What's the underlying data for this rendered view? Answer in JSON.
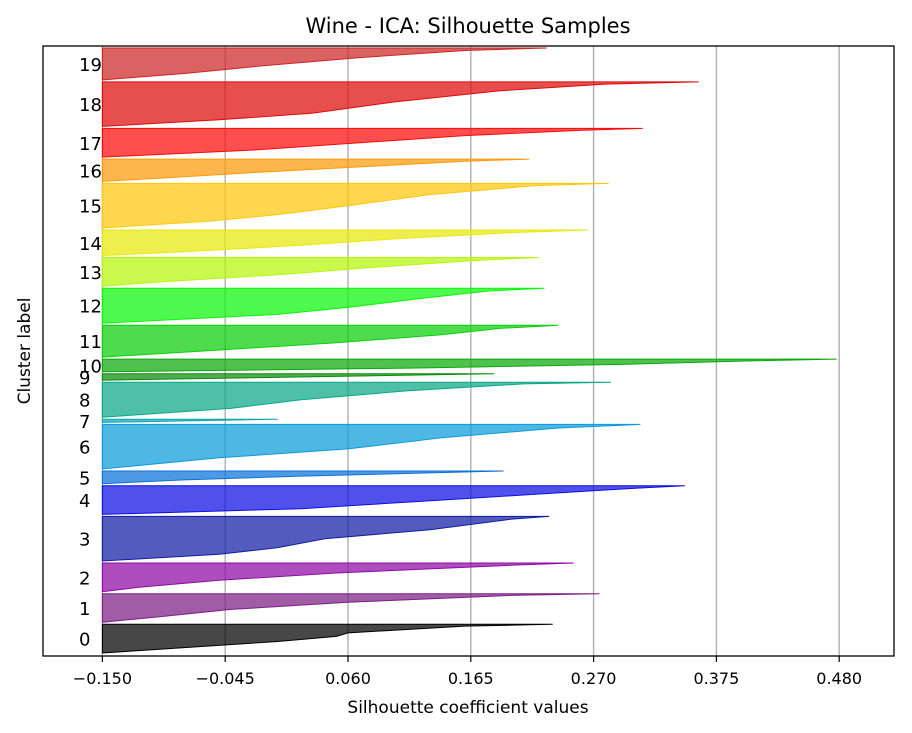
{
  "chart_data": {
    "type": "silhouette",
    "title": "Wine - ICA: Silhouette Samples",
    "xlabel": "Silhouette coefficient values",
    "ylabel": "Cluster label",
    "xlim": [
      -0.2,
      0.5
    ],
    "xticks": [
      -0.15,
      -0.045,
      0.06,
      0.165,
      0.27,
      0.375,
      0.48
    ],
    "xtick_labels": [
      "−0.150",
      "−0.045",
      "0.060",
      "0.165",
      "0.270",
      "0.375",
      "0.480"
    ],
    "grid_x": true,
    "clusters": [
      {
        "label": "0",
        "color": "#000000",
        "size": 9,
        "max": 0.235,
        "min": -0.15,
        "shape": [
          [
            0,
            0.235
          ],
          [
            0.06,
            0.16
          ],
          [
            0.3,
            0.06
          ],
          [
            0.42,
            0.05
          ],
          [
            0.6,
            0.0
          ],
          [
            1,
            -0.15
          ]
        ]
      },
      {
        "label": "1",
        "color": "#7b1e84",
        "size": 9,
        "max": 0.275,
        "min": -0.15,
        "shape": [
          [
            0,
            0.275
          ],
          [
            0.06,
            0.2
          ],
          [
            0.3,
            0.06
          ],
          [
            0.55,
            -0.04
          ],
          [
            0.8,
            -0.1
          ],
          [
            1,
            -0.15
          ]
        ]
      },
      {
        "label": "2",
        "color": "#8f0aa5",
        "size": 9,
        "max": 0.253,
        "min": -0.15,
        "shape": [
          [
            0,
            0.253
          ],
          [
            0.06,
            0.21
          ],
          [
            0.35,
            0.05
          ],
          [
            0.6,
            -0.05
          ],
          [
            0.85,
            -0.12
          ],
          [
            1,
            -0.15
          ]
        ]
      },
      {
        "label": "3",
        "color": "#101da3",
        "size": 14,
        "max": 0.232,
        "min": -0.15,
        "shape": [
          [
            0,
            0.232
          ],
          [
            0.06,
            0.2
          ],
          [
            0.3,
            0.13
          ],
          [
            0.5,
            0.04
          ],
          [
            0.7,
            0.0
          ],
          [
            0.85,
            -0.05
          ],
          [
            1,
            -0.15
          ]
        ]
      },
      {
        "label": "4",
        "color": "#0d0de2",
        "size": 9,
        "max": 0.348,
        "min": -0.15,
        "shape": [
          [
            0,
            0.348
          ],
          [
            0.1,
            0.3
          ],
          [
            0.3,
            0.22
          ],
          [
            0.55,
            0.12
          ],
          [
            0.8,
            0.02
          ],
          [
            1,
            -0.15
          ]
        ]
      },
      {
        "label": "5",
        "color": "#0a72d8",
        "size": 4,
        "max": 0.193,
        "min": -0.15,
        "shape": [
          [
            0,
            0.193
          ],
          [
            0.1,
            0.15
          ],
          [
            0.4,
            0.02
          ],
          [
            0.7,
            -0.08
          ],
          [
            1,
            -0.15
          ]
        ]
      },
      {
        "label": "6",
        "color": "#0a9bda",
        "size": 14,
        "max": 0.31,
        "min": -0.15,
        "shape": [
          [
            0,
            0.31
          ],
          [
            0.08,
            0.24
          ],
          [
            0.3,
            0.14
          ],
          [
            0.55,
            0.06
          ],
          [
            0.75,
            -0.05
          ],
          [
            1,
            -0.15
          ]
        ]
      },
      {
        "label": "7",
        "color": "#0aa5b2",
        "size": 1,
        "max": 0.0,
        "min": -0.15,
        "shape": [
          [
            0,
            0.0
          ],
          [
            1,
            -0.15
          ]
        ]
      },
      {
        "label": "8",
        "color": "#0aa887",
        "size": 11,
        "max": 0.285,
        "min": -0.15,
        "shape": [
          [
            0,
            0.285
          ],
          [
            0.05,
            0.21
          ],
          [
            0.25,
            0.11
          ],
          [
            0.5,
            0.02
          ],
          [
            0.75,
            -0.04
          ],
          [
            1,
            -0.15
          ]
        ]
      },
      {
        "label": "9",
        "color": "#0a8c0a",
        "size": 2,
        "max": 0.185,
        "min": -0.15,
        "shape": [
          [
            0,
            0.185
          ],
          [
            1,
            -0.15
          ]
        ]
      },
      {
        "label": "10",
        "color": "#0aa90a",
        "size": 4,
        "max": 0.478,
        "min": -0.15,
        "shape": [
          [
            0,
            0.478
          ],
          [
            0.15,
            0.4
          ],
          [
            0.4,
            0.3
          ],
          [
            0.7,
            0.12
          ],
          [
            1,
            -0.15
          ]
        ]
      },
      {
        "label": "11",
        "color": "#0acf0a",
        "size": 10,
        "max": 0.24,
        "min": -0.15,
        "shape": [
          [
            0,
            0.24
          ],
          [
            0.1,
            0.19
          ],
          [
            0.3,
            0.14
          ],
          [
            0.55,
            0.05
          ],
          [
            0.8,
            -0.06
          ],
          [
            1,
            -0.15
          ]
        ]
      },
      {
        "label": "12",
        "color": "#0af50a",
        "size": 11,
        "max": 0.228,
        "min": -0.15,
        "shape": [
          [
            0,
            0.228
          ],
          [
            0.08,
            0.18
          ],
          [
            0.3,
            0.12
          ],
          [
            0.55,
            0.06
          ],
          [
            0.75,
            0.0
          ],
          [
            1,
            -0.15
          ]
        ]
      },
      {
        "label": "13",
        "color": "#b7f50a",
        "size": 9,
        "max": 0.223,
        "min": -0.15,
        "shape": [
          [
            0,
            0.223
          ],
          [
            0.1,
            0.17
          ],
          [
            0.35,
            0.08
          ],
          [
            0.6,
            0.0
          ],
          [
            0.85,
            -0.1
          ],
          [
            1,
            -0.15
          ]
        ]
      },
      {
        "label": "14",
        "color": "#e8e80a",
        "size": 8,
        "max": 0.265,
        "min": -0.15,
        "shape": [
          [
            0,
            0.265
          ],
          [
            0.1,
            0.2
          ],
          [
            0.35,
            0.1
          ],
          [
            0.6,
            0.02
          ],
          [
            0.85,
            -0.08
          ],
          [
            1,
            -0.15
          ]
        ]
      },
      {
        "label": "15",
        "color": "#fdc70a",
        "size": 14,
        "max": 0.283,
        "min": -0.15,
        "shape": [
          [
            0,
            0.283
          ],
          [
            0.05,
            0.22
          ],
          [
            0.25,
            0.13
          ],
          [
            0.5,
            0.06
          ],
          [
            0.7,
            0.0
          ],
          [
            0.85,
            -0.06
          ],
          [
            1,
            -0.15
          ]
        ]
      },
      {
        "label": "16",
        "color": "#fb9a0a",
        "size": 7,
        "max": 0.215,
        "min": -0.15,
        "shape": [
          [
            0,
            0.215
          ],
          [
            0.1,
            0.16
          ],
          [
            0.35,
            0.07
          ],
          [
            0.6,
            -0.02
          ],
          [
            0.85,
            -0.1
          ],
          [
            1,
            -0.15
          ]
        ]
      },
      {
        "label": "17",
        "color": "#fe0a0a",
        "size": 9,
        "max": 0.312,
        "min": -0.15,
        "shape": [
          [
            0,
            0.312
          ],
          [
            0.06,
            0.26
          ],
          [
            0.25,
            0.16
          ],
          [
            0.5,
            0.07
          ],
          [
            0.75,
            -0.02
          ],
          [
            1,
            -0.15
          ]
        ]
      },
      {
        "label": "18",
        "color": "#de0a0a",
        "size": 14,
        "max": 0.36,
        "min": -0.15,
        "shape": [
          [
            0,
            0.36
          ],
          [
            0.05,
            0.28
          ],
          [
            0.2,
            0.19
          ],
          [
            0.45,
            0.1
          ],
          [
            0.7,
            0.03
          ],
          [
            0.85,
            -0.05
          ],
          [
            1,
            -0.15
          ]
        ]
      },
      {
        "label": "19",
        "color": "#cc2626",
        "size": 10,
        "max": 0.23,
        "min": -0.15,
        "shape": [
          [
            0,
            0.23
          ],
          [
            0.08,
            0.16
          ],
          [
            0.3,
            0.07
          ],
          [
            0.55,
            -0.01
          ],
          [
            0.8,
            -0.08
          ],
          [
            1,
            -0.15
          ]
        ]
      }
    ]
  }
}
